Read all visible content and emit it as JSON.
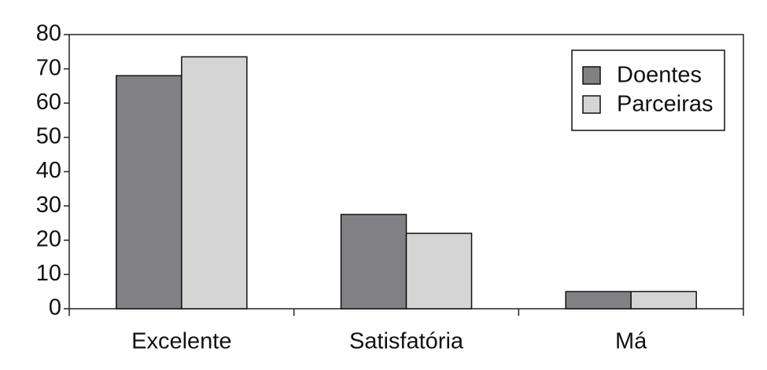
{
  "chart_data": {
    "type": "bar",
    "categories": [
      "Excelente",
      "Satisfatória",
      "Má"
    ],
    "series": [
      {
        "name": "Doentes",
        "color": "#818185",
        "values": [
          68,
          27.5,
          5
        ]
      },
      {
        "name": "Parceiras",
        "color": "#d5d5d5",
        "values": [
          73.5,
          22,
          5
        ]
      }
    ],
    "ylim": [
      0,
      80
    ],
    "yticks": [
      0,
      10,
      20,
      30,
      40,
      50,
      60,
      70,
      80
    ],
    "grid": false,
    "legend": "top-right"
  }
}
